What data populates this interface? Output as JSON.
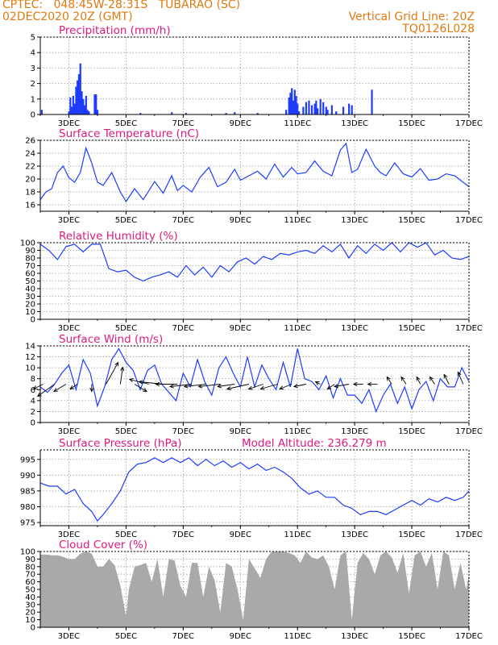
{
  "header": {
    "line1": "CPTEC:   048:45W-28:31S   TUBARAO (SC)",
    "line2": "02DEC2020 20Z (GMT)",
    "vgrid": "Vertical Grid Line: 20Z",
    "code": "TQ0126L028"
  },
  "colors": {
    "header": "#e07a10",
    "title": "#e0197d",
    "series": "#1e3cff",
    "cloud": "#a9a9a9"
  },
  "xaxis": {
    "start": 2.0,
    "end": 17.0,
    "labels": [
      "3DEC",
      "5DEC",
      "7DEC",
      "9DEC",
      "11DEC",
      "13DEC",
      "15DEC",
      "17DEC"
    ],
    "label_days": [
      3,
      5,
      7,
      9,
      11,
      13,
      15,
      17
    ]
  },
  "panels": [
    {
      "id": "precip",
      "title": "Precipitation (mm/h)",
      "extra": ""
    },
    {
      "id": "temp",
      "title": "Surface Temperature (nC)",
      "extra": ""
    },
    {
      "id": "rh",
      "title": "Relative Humidity (%)",
      "extra": ""
    },
    {
      "id": "wind",
      "title": "Surface Wind (m/s)",
      "extra": ""
    },
    {
      "id": "pres",
      "title": "Surface Pressure (hPa)",
      "extra": "Model Altitude: 236.279 m"
    },
    {
      "id": "cloud",
      "title": "Cloud Cover (%)",
      "extra": ""
    }
  ],
  "chart_data": [
    {
      "type": "bar",
      "title": "Precipitation (mm/h)",
      "ylim": [
        0,
        5
      ],
      "yticks": [
        0,
        1,
        2,
        3,
        4,
        5
      ],
      "x": [
        2.05,
        3.0,
        3.05,
        3.1,
        3.15,
        3.2,
        3.25,
        3.3,
        3.35,
        3.4,
        3.45,
        3.5,
        3.55,
        3.6,
        3.65,
        3.7,
        3.9,
        3.95,
        4.0,
        5.5,
        6.6,
        7.1,
        8.5,
        8.8,
        9.6,
        10.6,
        10.7,
        10.75,
        10.8,
        10.85,
        10.9,
        10.95,
        11.0,
        11.05,
        11.2,
        11.3,
        11.4,
        11.5,
        11.6,
        11.65,
        11.7,
        11.8,
        11.9,
        12.0,
        12.05,
        12.2,
        12.35,
        12.6,
        12.8,
        12.9,
        13.6
      ],
      "values": [
        0.3,
        0.2,
        1.1,
        0.5,
        1.2,
        0.7,
        1.8,
        2.2,
        2.6,
        3.3,
        1.5,
        1.0,
        0.6,
        1.2,
        0.3,
        0.2,
        1.3,
        1.3,
        0.3,
        0.1,
        0.15,
        0.1,
        0.1,
        0.15,
        0.1,
        0.3,
        1.1,
        1.4,
        1.7,
        0.9,
        1.6,
        1.2,
        0.7,
        0.2,
        0.5,
        0.8,
        0.9,
        0.6,
        0.7,
        0.9,
        0.4,
        1.0,
        0.8,
        0.5,
        0.3,
        0.6,
        0.2,
        0.5,
        0.7,
        0.6,
        1.6
      ]
    },
    {
      "type": "line",
      "title": "Surface Temperature (nC)",
      "ylim": [
        15,
        26
      ],
      "yticks": [
        16,
        18,
        20,
        22,
        24,
        26
      ],
      "x": [
        2.0,
        2.2,
        2.4,
        2.6,
        2.8,
        3.0,
        3.2,
        3.4,
        3.6,
        3.8,
        4.0,
        4.2,
        4.5,
        4.8,
        5.0,
        5.3,
        5.6,
        5.8,
        6.0,
        6.3,
        6.6,
        6.8,
        7.0,
        7.3,
        7.6,
        7.9,
        8.2,
        8.5,
        8.8,
        9.0,
        9.3,
        9.6,
        9.9,
        10.2,
        10.5,
        10.8,
        11.0,
        11.3,
        11.6,
        11.9,
        12.2,
        12.5,
        12.7,
        12.9,
        13.1,
        13.4,
        13.7,
        13.9,
        14.1,
        14.4,
        14.7,
        15.0,
        15.3,
        15.6,
        15.9,
        16.2,
        16.5,
        17.0
      ],
      "values": [
        16.8,
        18.0,
        18.5,
        21.0,
        22.0,
        20.2,
        19.5,
        21.0,
        24.8,
        22.5,
        19.5,
        19.0,
        21.0,
        18.0,
        16.5,
        18.5,
        16.8,
        18.2,
        19.6,
        17.8,
        20.5,
        18.2,
        19.0,
        18.0,
        20.3,
        21.8,
        18.8,
        19.5,
        21.5,
        19.8,
        20.5,
        21.2,
        20.0,
        22.3,
        20.3,
        21.8,
        20.8,
        21.0,
        22.8,
        21.2,
        20.5,
        24.5,
        25.5,
        21.0,
        21.5,
        24.6,
        22.0,
        21.0,
        20.5,
        22.5,
        20.8,
        20.3,
        21.6,
        19.8,
        20.0,
        20.8,
        20.5,
        18.8
      ]
    },
    {
      "type": "line",
      "title": "Relative Humidity (%)",
      "ylim": [
        0,
        100
      ],
      "yticks": [
        0,
        10,
        20,
        30,
        40,
        50,
        60,
        70,
        80,
        90,
        100
      ],
      "x": [
        2.0,
        2.3,
        2.6,
        2.9,
        3.2,
        3.5,
        3.8,
        4.1,
        4.4,
        4.7,
        5.0,
        5.3,
        5.6,
        5.9,
        6.2,
        6.5,
        6.8,
        7.1,
        7.4,
        7.7,
        8.0,
        8.3,
        8.6,
        8.9,
        9.2,
        9.5,
        9.8,
        10.1,
        10.4,
        10.7,
        11.0,
        11.3,
        11.6,
        11.9,
        12.2,
        12.5,
        12.8,
        13.1,
        13.4,
        13.7,
        14.0,
        14.3,
        14.6,
        14.9,
        15.2,
        15.5,
        15.8,
        16.1,
        16.4,
        16.7,
        17.0
      ],
      "values": [
        98,
        90,
        78,
        95,
        98,
        88,
        98,
        98,
        66,
        62,
        64,
        55,
        50,
        55,
        58,
        62,
        55,
        70,
        58,
        68,
        55,
        70,
        62,
        75,
        80,
        72,
        82,
        78,
        86,
        84,
        88,
        90,
        86,
        96,
        88,
        98,
        80,
        96,
        86,
        98,
        90,
        100,
        88,
        100,
        94,
        100,
        84,
        90,
        80,
        78,
        82
      ]
    },
    {
      "type": "line",
      "title": "Surface Wind (m/s)",
      "ylim": [
        0,
        14
      ],
      "yticks": [
        0,
        2,
        4,
        6,
        8,
        10,
        12,
        14
      ],
      "x": [
        2.0,
        2.25,
        2.5,
        2.75,
        3.0,
        3.25,
        3.5,
        3.75,
        4.0,
        4.25,
        4.5,
        4.75,
        5.0,
        5.25,
        5.5,
        5.75,
        6.0,
        6.25,
        6.5,
        6.75,
        7.0,
        7.25,
        7.5,
        7.75,
        8.0,
        8.25,
        8.5,
        8.75,
        9.0,
        9.25,
        9.5,
        9.75,
        10.0,
        10.25,
        10.5,
        10.75,
        11.0,
        11.25,
        11.5,
        11.75,
        12.0,
        12.25,
        12.5,
        12.75,
        13.0,
        13.25,
        13.5,
        13.75,
        14.0,
        14.25,
        14.5,
        14.75,
        15.0,
        15.25,
        15.5,
        15.75,
        16.0,
        16.25,
        16.5,
        16.75,
        17.0
      ],
      "values": [
        6.5,
        5.5,
        7.0,
        9.0,
        10.5,
        6.0,
        11.5,
        9.0,
        3.0,
        6.5,
        11.5,
        13.5,
        11.0,
        9.5,
        6.0,
        9.5,
        10.5,
        7.0,
        5.5,
        4.0,
        9.0,
        6.5,
        11.5,
        7.5,
        5.0,
        10.0,
        12.0,
        9.0,
        6.5,
        12.0,
        6.5,
        10.5,
        8.0,
        6.0,
        11.0,
        6.5,
        13.5,
        8.0,
        7.5,
        6.0,
        8.5,
        4.5,
        8.0,
        5.0,
        5.0,
        3.5,
        6.0,
        2.0,
        5.0,
        7.0,
        3.5,
        6.5,
        2.5,
        6.0,
        7.5,
        4.0,
        8.0,
        6.5,
        6.5,
        10.0,
        7.5
      ],
      "arrows": {
        "x": [
          2.1,
          2.5,
          2.9,
          3.3,
          3.8,
          4.3,
          4.8,
          5.3,
          5.8,
          6.3,
          6.8,
          7.3,
          7.8,
          8.3,
          8.8,
          9.3,
          9.8,
          10.3,
          10.8,
          11.3,
          11.8,
          12.3,
          12.8,
          13.3,
          13.8,
          14.3,
          14.8,
          15.3,
          15.8,
          16.3,
          16.8
        ],
        "u": [
          -4,
          -7,
          -5,
          -3,
          0,
          5,
          1,
          5,
          -8,
          -10,
          -9,
          -9,
          -9,
          -9,
          -7,
          -9,
          -6,
          -7,
          -5,
          -5,
          -2,
          -3,
          -6,
          -4,
          -4,
          -2,
          -2,
          -1.5,
          -2,
          -2,
          -2.2
        ],
        "v": [
          -2,
          -5,
          -3,
          -2,
          -3,
          9,
          7,
          -3,
          2,
          1,
          0,
          -1,
          -1,
          -1,
          -1,
          -2,
          -2,
          -2,
          -2,
          -1,
          1,
          -2,
          -1,
          0,
          0,
          3,
          3,
          3,
          3,
          4,
          5
        ]
      }
    },
    {
      "type": "line",
      "title": "Surface Pressure (hPa)",
      "ylim": [
        974,
        998
      ],
      "yticks": [
        975,
        980,
        985,
        990,
        995
      ],
      "annotation": "Model Altitude: 236.279 m",
      "x": [
        2.0,
        2.3,
        2.6,
        2.9,
        3.2,
        3.5,
        3.8,
        4.0,
        4.2,
        4.5,
        4.8,
        5.1,
        5.4,
        5.7,
        6.0,
        6.3,
        6.6,
        6.9,
        7.2,
        7.5,
        7.8,
        8.1,
        8.4,
        8.7,
        9.0,
        9.3,
        9.6,
        9.9,
        10.2,
        10.5,
        10.8,
        11.1,
        11.4,
        11.7,
        12.0,
        12.3,
        12.6,
        12.9,
        13.2,
        13.5,
        13.8,
        14.1,
        14.4,
        14.7,
        15.0,
        15.3,
        15.6,
        15.9,
        16.2,
        16.5,
        16.8,
        17.0
      ],
      "values": [
        987.5,
        986.5,
        986.5,
        984.0,
        985.5,
        981.0,
        978.5,
        975.5,
        977.5,
        981.0,
        985.0,
        991.0,
        993.5,
        994.0,
        995.5,
        994.0,
        995.5,
        994.0,
        995.5,
        993.0,
        995.0,
        993.0,
        994.5,
        992.5,
        994.0,
        992.0,
        993.5,
        991.5,
        992.5,
        991.0,
        989.0,
        986.0,
        984.0,
        985.0,
        983.0,
        983.0,
        980.5,
        979.5,
        977.5,
        978.5,
        978.5,
        977.5,
        979.0,
        980.5,
        982.0,
        980.5,
        982.5,
        981.5,
        983.0,
        982.0,
        983.0,
        985.0
      ]
    },
    {
      "type": "area",
      "title": "Cloud Cover (%)",
      "ylim": [
        0,
        100
      ],
      "yticks": [
        0,
        10,
        20,
        30,
        40,
        50,
        60,
        70,
        80,
        90,
        100
      ],
      "x": [
        2.0,
        2.2,
        2.4,
        2.6,
        2.8,
        3.0,
        3.2,
        3.4,
        3.6,
        3.8,
        4.0,
        4.2,
        4.4,
        4.6,
        4.8,
        5.0,
        5.1,
        5.3,
        5.5,
        5.7,
        5.9,
        6.1,
        6.3,
        6.5,
        6.7,
        6.9,
        7.1,
        7.3,
        7.5,
        7.7,
        7.9,
        8.1,
        8.3,
        8.5,
        8.7,
        8.9,
        9.1,
        9.3,
        9.5,
        9.7,
        9.9,
        10.1,
        10.3,
        10.5,
        10.7,
        10.9,
        11.1,
        11.3,
        11.5,
        11.7,
        11.9,
        12.1,
        12.3,
        12.5,
        12.7,
        12.9,
        13.1,
        13.3,
        13.5,
        13.7,
        13.9,
        14.1,
        14.3,
        14.5,
        14.7,
        14.9,
        15.1,
        15.3,
        15.5,
        15.7,
        15.9,
        16.1,
        16.3,
        16.5,
        16.7,
        16.9,
        17.0
      ],
      "values": [
        96,
        96,
        95,
        95,
        93,
        90,
        90,
        97,
        100,
        97,
        80,
        80,
        90,
        82,
        55,
        15,
        50,
        80,
        82,
        85,
        60,
        90,
        40,
        90,
        88,
        55,
        40,
        85,
        85,
        40,
        80,
        62,
        20,
        85,
        80,
        50,
        10,
        90,
        78,
        65,
        90,
        100,
        100,
        100,
        98,
        95,
        85,
        100,
        92,
        90,
        95,
        80,
        50,
        95,
        100,
        10,
        85,
        98,
        90,
        70,
        95,
        100,
        92,
        72,
        98,
        45,
        95,
        100,
        80,
        98,
        50,
        100,
        95,
        50,
        85,
        50,
        70
      ]
    }
  ]
}
